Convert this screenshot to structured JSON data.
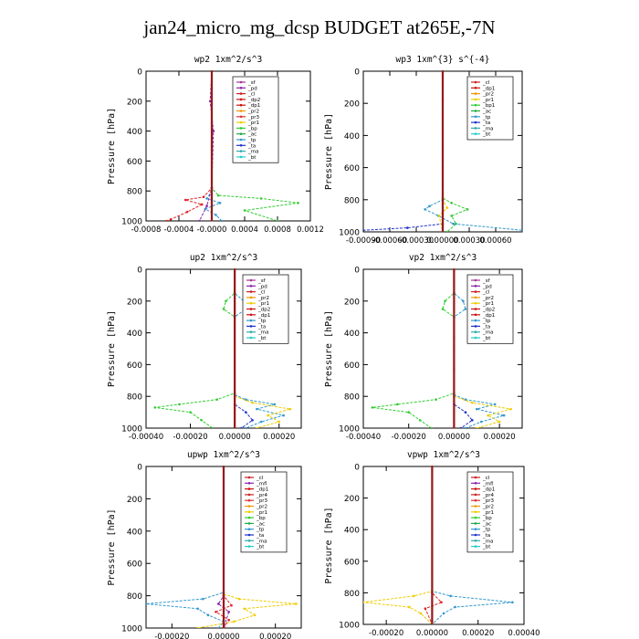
{
  "figure": {
    "title": "jan24_micro_mg_dcsp  BUDGET at265E,-7N"
  },
  "chart_data": [
    {
      "type": "line",
      "title": "wp2   1xm^2/s^3",
      "ylabel": "Pressure [hPa]",
      "xlim": [
        -0.0008,
        0.0012
      ],
      "ylim": [
        1000,
        0
      ],
      "xticks": [
        "-0.0008",
        "-0.0004",
        "-0.0000",
        "0.0004",
        "0.0008",
        "0.0012"
      ],
      "yticks": [
        "0",
        "200",
        "400",
        "600",
        "800",
        "1000"
      ],
      "legend": [
        "_sf",
        "_pd",
        "_cl",
        "_dp2",
        "_dp1",
        "_pr2",
        "_pr3",
        "_pr1",
        "_bp",
        "_ac",
        "_tp",
        "_ta",
        "_ma",
        "_bt"
      ],
      "series": [
        {
          "name": "_bp",
          "color": "#33cc33",
          "points": [
            [
              0,
              0
            ],
            [
              0,
              780
            ],
            [
              8e-05,
              830
            ],
            [
              0.0006,
              850
            ],
            [
              0.00105,
              880
            ],
            [
              0.0004,
              930
            ],
            [
              0.0008,
              1000
            ]
          ]
        },
        {
          "name": "_dp2",
          "color": "#dd2222",
          "points": [
            [
              0,
              0
            ],
            [
              0,
              780
            ],
            [
              -0.0001,
              840
            ],
            [
              -0.00032,
              860
            ],
            [
              -0.00012,
              890
            ],
            [
              -0.0003,
              940
            ],
            [
              -0.0005,
              990
            ],
            [
              -0.00055,
              1000
            ]
          ]
        },
        {
          "name": "_tp",
          "color": "#3399cc",
          "points": [
            [
              0,
              0
            ],
            [
              0,
              800
            ],
            [
              -6e-05,
              850
            ],
            [
              0.0001,
              880
            ],
            [
              -8e-05,
              920
            ],
            [
              5e-05,
              960
            ],
            [
              0.00012,
              1000
            ]
          ]
        },
        {
          "name": "_pd",
          "color": "#8822aa",
          "points": [
            [
              0,
              0
            ],
            [
              -2e-05,
              200
            ],
            [
              2e-05,
              400
            ],
            [
              0,
              780
            ],
            [
              -6e-05,
              900
            ],
            [
              -0.00015,
              1000
            ]
          ]
        },
        {
          "name": "_cl",
          "color": "#cc0000",
          "points": [
            [
              0,
              0
            ],
            [
              0,
              1000
            ]
          ]
        }
      ]
    },
    {
      "type": "line",
      "title": "wp3   1xm^{3} s^{-4}",
      "ylabel": "Pressure [hPa]",
      "xlim": [
        -0.0009,
        0.0009
      ],
      "ylim": [
        1000,
        0
      ],
      "xticks": [
        "-0.00090",
        "-0.00060",
        "-0.00030",
        "0.00000",
        "0.00030",
        "0.00060"
      ],
      "yticks": [
        "0",
        "200",
        "400",
        "600",
        "800",
        "1000"
      ],
      "legend": [
        "_cl",
        "_dp1",
        "_pr2",
        "_pr1",
        "_bp1",
        "_ac",
        "_tp",
        "_ta",
        "_ma",
        "_bt"
      ],
      "series": [
        {
          "name": "_bp1",
          "color": "#33cc33",
          "points": [
            [
              0,
              0
            ],
            [
              0,
              790
            ],
            [
              0.0001,
              820
            ],
            [
              0.00028,
              860
            ],
            [
              0.0001,
              900
            ],
            [
              0.00015,
              950
            ],
            [
              5e-05,
              1000
            ]
          ]
        },
        {
          "name": "_tp",
          "color": "#3399cc",
          "points": [
            [
              0,
              0
            ],
            [
              0,
              800
            ],
            [
              -0.00015,
              840
            ],
            [
              -0.0002,
              860
            ],
            [
              -5e-05,
              900
            ],
            [
              0.00012,
              950
            ],
            [
              0.0009,
              990
            ]
          ]
        },
        {
          "name": "_ta",
          "color": "#2233cc",
          "points": [
            [
              0,
              0
            ],
            [
              0,
              950
            ],
            [
              -0.0004,
              975
            ],
            [
              -0.0009,
              990
            ]
          ]
        },
        {
          "name": "_pr1",
          "color": "#eecc00",
          "points": [
            [
              0,
              0
            ],
            [
              0,
              800
            ],
            [
              5e-05,
              850
            ],
            [
              -4e-05,
              900
            ],
            [
              0,
              1000
            ]
          ]
        },
        {
          "name": "_cl",
          "color": "#cc0000",
          "points": [
            [
              0,
              0
            ],
            [
              0,
              1000
            ]
          ]
        }
      ]
    },
    {
      "type": "line",
      "title": "up2   1xm^2/s^3",
      "ylabel": "Pressure [hPa]",
      "xlim": [
        -0.0004,
        0.0003
      ],
      "ylim": [
        1000,
        0
      ],
      "xticks": [
        "-0.00040",
        "-0.00020",
        "0.00000",
        "0.00020"
      ],
      "yticks": [
        "0",
        "200",
        "400",
        "600",
        "800",
        "1000"
      ],
      "legend": [
        "_sf",
        "_pd",
        "_cl",
        "_pr2",
        "_pr1",
        "_dp2",
        "_dp1",
        "_tp",
        "_ta",
        "_ma",
        "_bt"
      ],
      "series": [
        {
          "name": "_dp1",
          "color": "#33cc33",
          "points": [
            [
              0,
              0
            ],
            [
              0,
              150
            ],
            [
              -4e-05,
              200
            ],
            [
              -5e-05,
              250
            ],
            [
              0,
              300
            ],
            [
              0,
              780
            ],
            [
              -8e-05,
              820
            ],
            [
              -0.00025,
              850
            ],
            [
              -0.00036,
              870
            ],
            [
              -0.0002,
              900
            ],
            [
              -0.00015,
              950
            ],
            [
              -0.0001,
              1000
            ]
          ]
        },
        {
          "name": "_tp",
          "color": "#3399cc",
          "points": [
            [
              0,
              0
            ],
            [
              0,
              150
            ],
            [
              4e-05,
              200
            ],
            [
              5e-05,
              250
            ],
            [
              0,
              300
            ],
            [
              0,
              790
            ],
            [
              5e-05,
              820
            ],
            [
              0.00018,
              850
            ],
            [
              0.0001,
              880
            ],
            [
              0.00022,
              920
            ],
            [
              0.00012,
              960
            ],
            [
              5e-05,
              1000
            ]
          ]
        },
        {
          "name": "_pr1",
          "color": "#eecc00",
          "points": [
            [
              0,
              0
            ],
            [
              0,
              800
            ],
            [
              8e-05,
              840
            ],
            [
              0.00025,
              880
            ],
            [
              0.00015,
              920
            ],
            [
              0.0002,
              960
            ],
            [
              0.0001,
              1000
            ]
          ]
        },
        {
          "name": "_ta",
          "color": "#2233cc",
          "points": [
            [
              0,
              0
            ],
            [
              0,
              850
            ],
            [
              5e-05,
              900
            ],
            [
              8e-05,
              950
            ],
            [
              3e-05,
              1000
            ]
          ]
        },
        {
          "name": "_cl",
          "color": "#cc0000",
          "points": [
            [
              0,
              0
            ],
            [
              0,
              1000
            ]
          ]
        }
      ]
    },
    {
      "type": "line",
      "title": "vp2   1xm^2/s^3",
      "ylabel": "Pressure [hPa]",
      "xlim": [
        -0.0004,
        0.0003
      ],
      "ylim": [
        1000,
        0
      ],
      "xticks": [
        "-0.00040",
        "-0.00020",
        "0.00000",
        "0.00020"
      ],
      "yticks": [
        "0",
        "200",
        "400",
        "600",
        "800",
        "1000"
      ],
      "legend": [
        "_sf",
        "_pd",
        "_cl",
        "_pr2",
        "_pr1",
        "_dp2",
        "_dp1",
        "_tp",
        "_ta",
        "_ma",
        "_bt"
      ],
      "series": [
        {
          "name": "_dp1",
          "color": "#33cc33",
          "points": [
            [
              0,
              0
            ],
            [
              0,
              150
            ],
            [
              -4e-05,
              200
            ],
            [
              -5e-05,
              250
            ],
            [
              0,
              300
            ],
            [
              0,
              780
            ],
            [
              -8e-05,
              820
            ],
            [
              -0.00025,
              850
            ],
            [
              -0.00036,
              870
            ],
            [
              -0.0002,
              900
            ],
            [
              -0.00015,
              950
            ],
            [
              -0.0001,
              1000
            ]
          ]
        },
        {
          "name": "_tp",
          "color": "#3399cc",
          "points": [
            [
              0,
              0
            ],
            [
              0,
              150
            ],
            [
              4e-05,
              200
            ],
            [
              5e-05,
              250
            ],
            [
              0,
              300
            ],
            [
              0,
              790
            ],
            [
              5e-05,
              820
            ],
            [
              0.00018,
              850
            ],
            [
              0.0001,
              880
            ],
            [
              0.00022,
              920
            ],
            [
              0.00012,
              960
            ],
            [
              5e-05,
              1000
            ]
          ]
        },
        {
          "name": "_pr1",
          "color": "#eecc00",
          "points": [
            [
              0,
              0
            ],
            [
              0,
              800
            ],
            [
              8e-05,
              840
            ],
            [
              0.00025,
              880
            ],
            [
              0.00015,
              920
            ],
            [
              0.0002,
              960
            ],
            [
              0.0001,
              1000
            ]
          ]
        },
        {
          "name": "_ta",
          "color": "#2233cc",
          "points": [
            [
              0,
              0
            ],
            [
              0,
              850
            ],
            [
              5e-05,
              900
            ],
            [
              8e-05,
              950
            ],
            [
              3e-05,
              1000
            ]
          ]
        },
        {
          "name": "_cl",
          "color": "#cc0000",
          "points": [
            [
              0,
              0
            ],
            [
              0,
              1000
            ]
          ]
        }
      ]
    },
    {
      "type": "line",
      "title": "upwp   1xm^2/s^3",
      "ylabel": "Pressure [hPa]",
      "xlim": [
        -0.0003,
        0.0003
      ],
      "ylim": [
        1000,
        0
      ],
      "xticks": [
        "-0.00020",
        "0.00000",
        "0.00020"
      ],
      "yticks": [
        "0",
        "200",
        "400",
        "600",
        "800",
        "1000"
      ],
      "legend": [
        "_cl",
        "_mfl",
        "_dp1",
        "_pr4",
        "_pr3",
        "_pr2",
        "_pr1",
        "_bp",
        "_ac",
        "_tp",
        "_ta",
        "_ma",
        "_bt"
      ],
      "series": [
        {
          "name": "_tp",
          "color": "#3399cc",
          "points": [
            [
              0,
              0
            ],
            [
              0,
              780
            ],
            [
              -8e-05,
              820
            ],
            [
              -0.0003,
              850
            ],
            [
              -0.0001,
              880
            ],
            [
              -6e-05,
              920
            ],
            [
              0,
              960
            ],
            [
              -2e-05,
              1000
            ]
          ]
        },
        {
          "name": "_pr1",
          "color": "#eecc00",
          "points": [
            [
              0,
              0
            ],
            [
              0,
              790
            ],
            [
              6e-05,
              820
            ],
            [
              0.00028,
              850
            ],
            [
              8e-05,
              880
            ],
            [
              0.00012,
              920
            ],
            [
              4e-05,
              960
            ],
            [
              -0.0001,
              1000
            ]
          ]
        },
        {
          "name": "_mfl",
          "color": "#8822aa",
          "points": [
            [
              0,
              0
            ],
            [
              0,
              800
            ],
            [
              -2e-05,
              850
            ],
            [
              2e-05,
              900
            ],
            [
              0,
              1000
            ]
          ]
        },
        {
          "name": "_pr4",
          "color": "#dd2222",
          "points": [
            [
              0,
              0
            ],
            [
              0,
              800
            ],
            [
              3e-05,
              860
            ],
            [
              -3e-05,
              900
            ],
            [
              2e-05,
              950
            ],
            [
              0,
              1000
            ]
          ]
        },
        {
          "name": "_cl",
          "color": "#cc0000",
          "points": [
            [
              0,
              0
            ],
            [
              0,
              1000
            ]
          ]
        }
      ]
    },
    {
      "type": "line",
      "title": "vpwp   1xm^2/s^3",
      "ylabel": "Pressure [hPa]",
      "xlim": [
        -0.0003,
        0.0004
      ],
      "ylim": [
        1000,
        0
      ],
      "xticks": [
        "-0.00020",
        "0.00000",
        "0.00020",
        "0.00040"
      ],
      "yticks": [
        "0",
        "200",
        "400",
        "600",
        "800",
        "1000"
      ],
      "legend": [
        "_cl",
        "_mfl",
        "_dp1",
        "_pr4",
        "_pr3",
        "_pr2",
        "_pr1",
        "_bp",
        "_ac",
        "_tp",
        "_ta",
        "_ma",
        "_bt"
      ],
      "series": [
        {
          "name": "_tp",
          "color": "#3399cc",
          "points": [
            [
              0,
              0
            ],
            [
              0,
              790
            ],
            [
              8e-05,
              820
            ],
            [
              0.00035,
              860
            ],
            [
              0.0001,
              890
            ],
            [
              5e-05,
              930
            ],
            [
              0,
              1000
            ]
          ]
        },
        {
          "name": "_pr1",
          "color": "#eecc00",
          "points": [
            [
              0,
              0
            ],
            [
              0,
              790
            ],
            [
              -8e-05,
              820
            ],
            [
              -0.0003,
              860
            ],
            [
              -0.0001,
              890
            ],
            [
              -5e-05,
              930
            ],
            [
              0,
              1000
            ]
          ]
        },
        {
          "name": "_pr4",
          "color": "#dd2222",
          "points": [
            [
              0,
              0
            ],
            [
              0,
              800
            ],
            [
              4e-05,
              860
            ],
            [
              -3e-05,
              900
            ],
            [
              0,
              1000
            ]
          ]
        },
        {
          "name": "_cl",
          "color": "#cc0000",
          "points": [
            [
              0,
              0
            ],
            [
              0,
              1000
            ]
          ]
        }
      ]
    }
  ]
}
